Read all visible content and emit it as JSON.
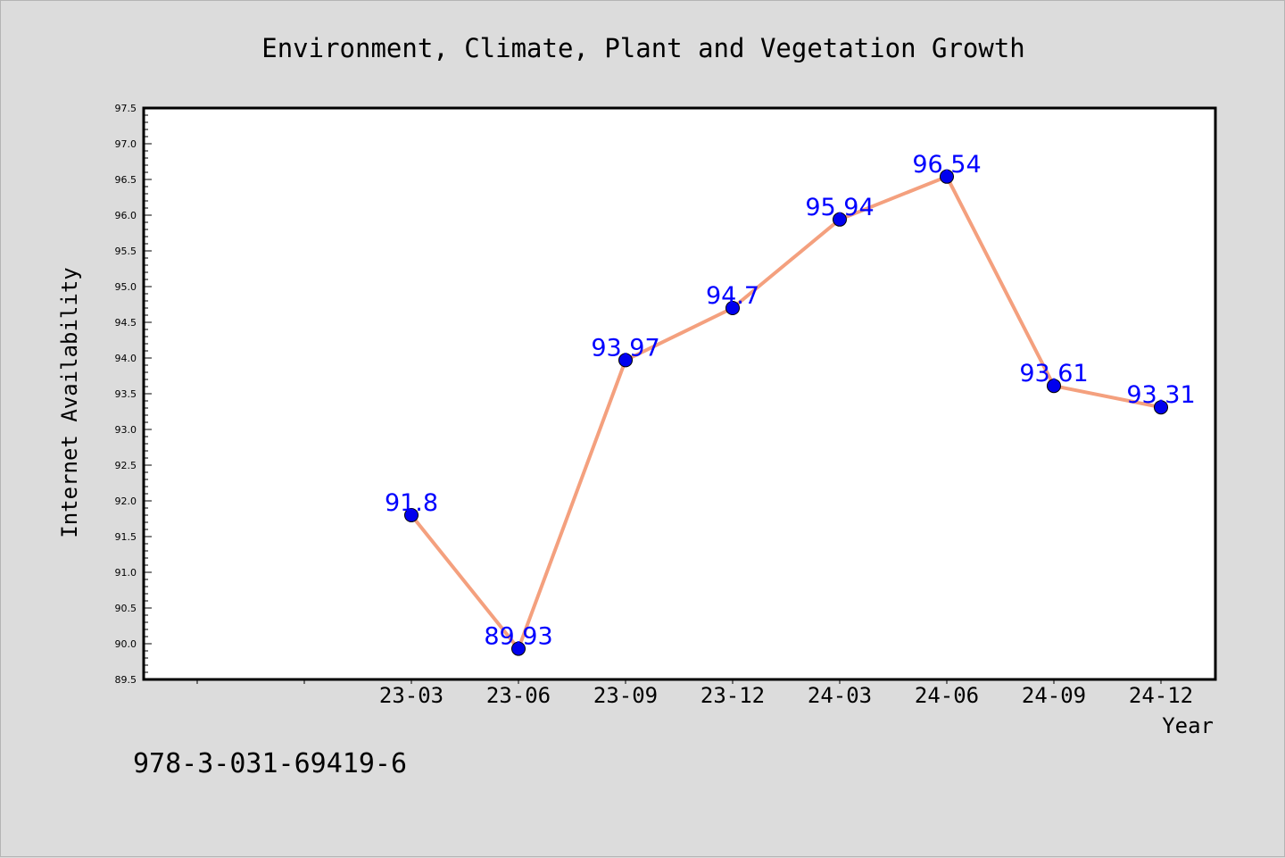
{
  "chart_data": {
    "type": "line",
    "title": "Environment, Climate, Plant and Vegetation Growth",
    "xlabel": "Year",
    "ylabel": "Internet Availability",
    "categories": [
      "23-03",
      "23-06",
      "23-09",
      "23-12",
      "24-03",
      "24-06",
      "24-09",
      "24-12"
    ],
    "values": [
      91.8,
      89.93,
      93.97,
      94.7,
      95.94,
      96.54,
      93.61,
      93.31
    ],
    "data_labels": [
      "91.8",
      "89.93",
      "93.97",
      "94.7",
      "95.94",
      "96.54",
      "93.61",
      "93.31"
    ],
    "ylim": [
      89.5,
      97.5
    ],
    "y_ticks": [
      "89.5",
      "90.0",
      "90.5",
      "91.0",
      "91.5",
      "92.0",
      "92.5",
      "93.0",
      "93.5",
      "94.0",
      "94.5",
      "95.0",
      "95.5",
      "96.0",
      "96.5",
      "97.0",
      "97.5"
    ],
    "grid": false,
    "legend": "none",
    "line_color": "#f4a07e",
    "marker_color": "#0000ee",
    "label_color": "#0000ff"
  },
  "footer_text": "978-3-031-69419-6"
}
